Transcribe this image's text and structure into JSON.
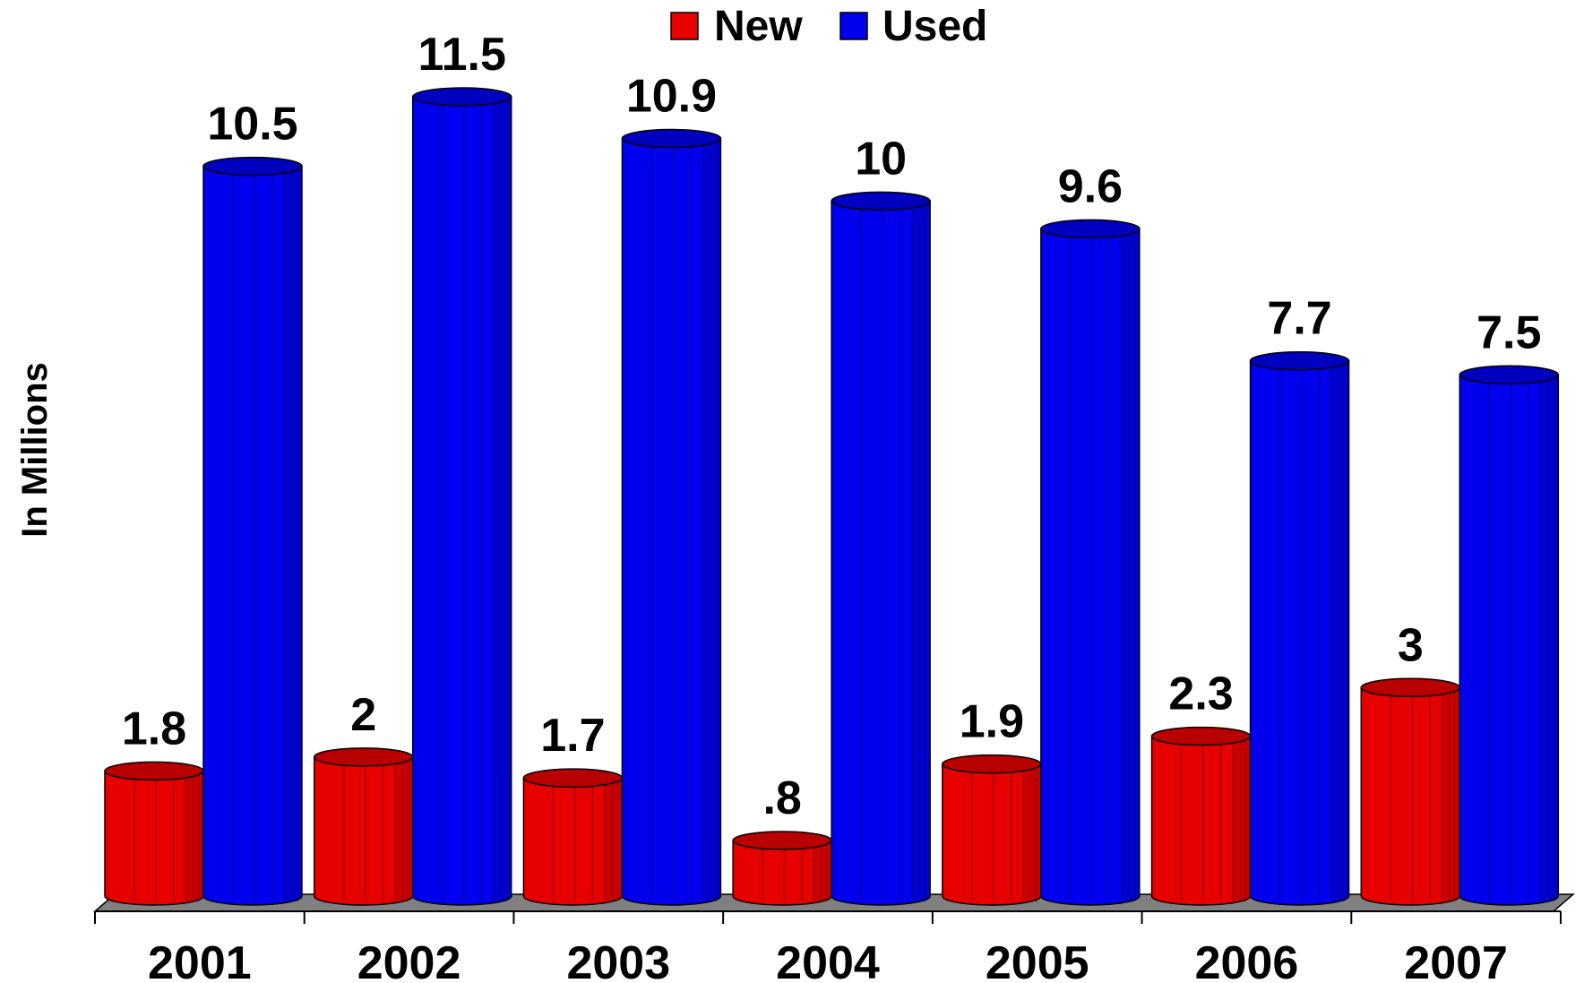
{
  "chart_data": {
    "type": "bar",
    "title": "",
    "xlabel": "",
    "ylabel": "In Millions",
    "categories": [
      "2001",
      "2002",
      "2003",
      "2004",
      "2005",
      "2006",
      "2007"
    ],
    "series": [
      {
        "name": "New",
        "color": "#e60000",
        "values": [
          1.8,
          2,
          1.7,
          0.8,
          1.9,
          2.3,
          3
        ],
        "labels": [
          "1.8",
          "2",
          "1.7",
          ".8",
          "1.9",
          "2.3",
          "3"
        ]
      },
      {
        "name": "Used",
        "color": "#0000ee",
        "values": [
          10.5,
          11.5,
          10.9,
          10,
          9.6,
          7.7,
          7.5
        ],
        "labels": [
          "10.5",
          "11.5",
          "10.9",
          "10",
          "9.6",
          "7.7",
          "7.5"
        ]
      }
    ],
    "ylim": [
      0,
      12
    ],
    "bar_shape": "cylinder",
    "floor_color": "#808080",
    "grid": false,
    "legend_position": "top-center"
  }
}
